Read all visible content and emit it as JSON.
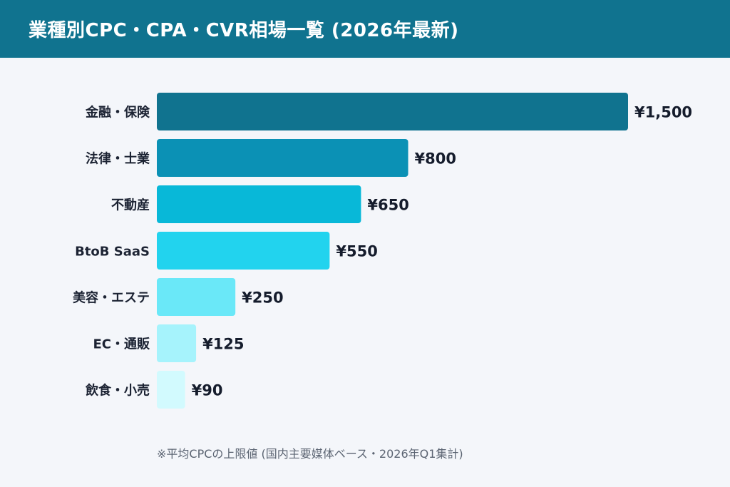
{
  "title": "業種別CPC・CPA・CVR相場一覧 (2026年最新)",
  "footnote": "※平均CPCの上限値 (国内主要媒体ベース・2026年Q1集計)",
  "chart_data": {
    "type": "bar",
    "orientation": "horizontal",
    "categories": [
      "金融・保険",
      "法律・士業",
      "不動産",
      "BtoB SaaS",
      "美容・エステ",
      "EC・通販",
      "飲食・小売"
    ],
    "values": [
      1500,
      800,
      650,
      550,
      250,
      125,
      90
    ],
    "value_labels": [
      "¥1,500",
      "¥800",
      "¥650",
      "¥550",
      "¥250",
      "¥125",
      "¥90"
    ],
    "colors": [
      "#10738f",
      "#0b91b5",
      "#08b8d8",
      "#22d3ee",
      "#6ae8f8",
      "#a6f3fc",
      "#d2fafe"
    ],
    "xlim": [
      0,
      1500
    ],
    "grid": false,
    "legend": "none"
  }
}
